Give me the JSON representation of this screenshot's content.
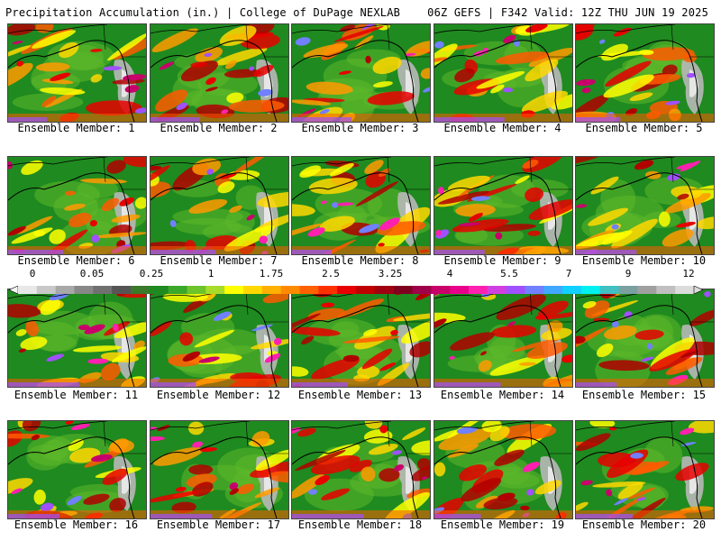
{
  "header": {
    "title_left": "Precipitation Accumulation (in.) | College of DuPage NEXLAB",
    "title_right": "06Z GEFS | F342 Valid: 12Z THU JUN 19 2025"
  },
  "panels": [
    {
      "label": "Ensemble Member: 1"
    },
    {
      "label": "Ensemble Member: 2"
    },
    {
      "label": "Ensemble Member: 3"
    },
    {
      "label": "Ensemble Member: 4"
    },
    {
      "label": "Ensemble Member: 5"
    },
    {
      "label": "Ensemble Member: 6"
    },
    {
      "label": "Ensemble Member: 7"
    },
    {
      "label": "Ensemble Member: 8"
    },
    {
      "label": "Ensemble Member: 9"
    },
    {
      "label": "Ensemble Member: 10"
    },
    {
      "label": "Ensemble Member: 11"
    },
    {
      "label": "Ensemble Member: 12"
    },
    {
      "label": "Ensemble Member: 13"
    },
    {
      "label": "Ensemble Member: 14"
    },
    {
      "label": "Ensemble Member: 15"
    },
    {
      "label": "Ensemble Member: 16"
    },
    {
      "label": "Ensemble Member: 17"
    },
    {
      "label": "Ensemble Member: 18"
    },
    {
      "label": "Ensemble Member: 19"
    },
    {
      "label": "Ensemble Member: 20"
    }
  ],
  "colorbar": {
    "ticks": [
      "0",
      "0.05",
      "0.25",
      "1",
      "1.75",
      "2.5",
      "3.25",
      "4",
      "5.5",
      "7",
      "9",
      "12"
    ],
    "colors": [
      "#e8e8e8",
      "#c8c8c8",
      "#a8a8a8",
      "#888888",
      "#707070",
      "#555555",
      "#3a7a2a",
      "#1f8a1f",
      "#3aa82a",
      "#6cc42a",
      "#a8dc2a",
      "#ffff00",
      "#ffd800",
      "#ffb000",
      "#ff8a00",
      "#ff6000",
      "#ff3000",
      "#e80000",
      "#c00000",
      "#a00010",
      "#800020",
      "#a0004a",
      "#c8006a",
      "#e8008a",
      "#ff20b0",
      "#d040e0",
      "#a050ff",
      "#7080ff",
      "#40a8ff",
      "#10d0ff",
      "#00f0f0",
      "#40c0c0",
      "#7aa0a0",
      "#a0a0a0",
      "#c0c0c0",
      "#dcdcdc"
    ]
  }
}
